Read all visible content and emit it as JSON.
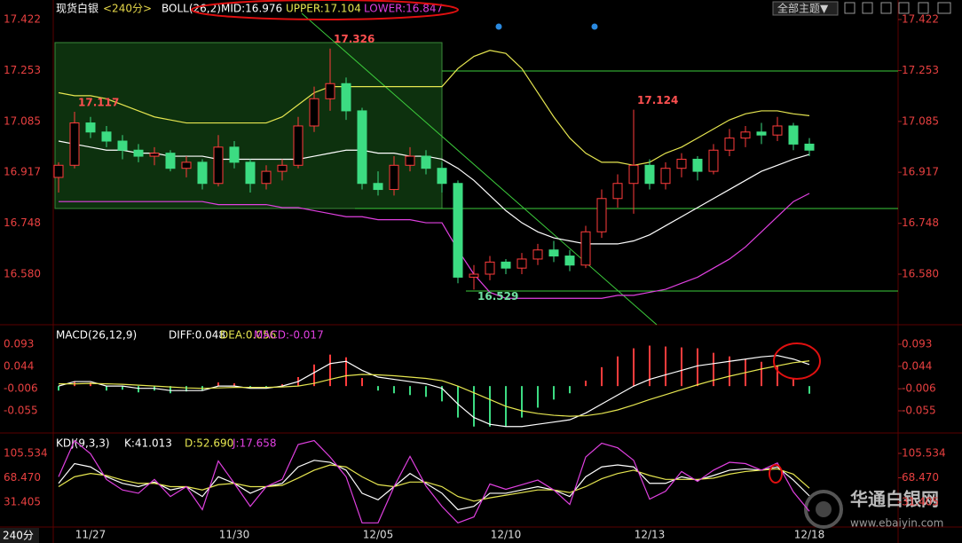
{
  "chart_data": [
    {
      "type": "candlestick",
      "title": "现货白银",
      "subtitle": "<240分>",
      "indicator": "BOLL(26,2)",
      "categories": [
        null,
        null,
        "11/27",
        null,
        null,
        null,
        null,
        null,
        null,
        null,
        null,
        "11/30",
        null,
        null,
        null,
        null,
        null,
        null,
        null,
        null,
        "12/05",
        null,
        null,
        null,
        null,
        null,
        null,
        null,
        "12/10",
        null,
        null,
        null,
        null,
        null,
        null,
        null,
        null,
        "12/13",
        null,
        null,
        null,
        null,
        null,
        null,
        null,
        null,
        null,
        "12/18"
      ],
      "open": [
        16.9,
        16.94,
        17.08,
        17.05,
        17.02,
        16.99,
        16.97,
        16.98,
        16.93,
        16.95,
        16.88,
        17.0,
        16.95,
        16.88,
        16.92,
        16.94,
        17.07,
        17.16,
        17.21,
        17.12,
        16.88,
        16.86,
        16.94,
        16.97,
        16.93,
        16.88,
        16.57,
        16.58,
        16.62,
        16.6,
        16.63,
        16.66,
        16.64,
        16.61,
        16.72,
        16.83,
        16.88,
        16.94,
        16.88,
        16.93,
        16.96,
        16.92,
        16.99,
        17.03,
        17.05,
        17.04,
        17.07,
        17.01
      ],
      "high": [
        16.95,
        17.117,
        17.1,
        17.07,
        17.04,
        17.01,
        17.0,
        16.99,
        16.97,
        16.96,
        17.04,
        17.02,
        16.96,
        16.94,
        16.96,
        17.1,
        17.2,
        17.326,
        17.23,
        17.13,
        16.92,
        16.97,
        17.0,
        16.99,
        16.95,
        16.89,
        16.61,
        16.64,
        16.63,
        16.65,
        16.68,
        16.69,
        16.66,
        16.74,
        16.86,
        16.91,
        17.124,
        16.96,
        16.95,
        16.98,
        16.97,
        17.01,
        17.06,
        17.07,
        17.08,
        17.1,
        17.08,
        17.03
      ],
      "low": [
        16.85,
        16.93,
        17.03,
        17.0,
        16.96,
        16.95,
        16.94,
        16.92,
        16.9,
        16.86,
        16.87,
        16.93,
        16.85,
        16.86,
        16.89,
        16.93,
        17.05,
        17.12,
        17.09,
        16.86,
        16.84,
        16.84,
        16.92,
        16.91,
        16.85,
        16.55,
        16.529,
        16.56,
        16.58,
        16.58,
        16.61,
        16.62,
        16.59,
        16.6,
        16.7,
        16.8,
        16.78,
        16.86,
        16.86,
        16.9,
        16.89,
        16.91,
        16.97,
        17.0,
        17.01,
        17.02,
        16.99,
        16.97
      ],
      "close": [
        16.94,
        17.08,
        17.05,
        17.02,
        16.99,
        16.97,
        16.98,
        16.93,
        16.95,
        16.88,
        17.0,
        16.95,
        16.88,
        16.92,
        16.94,
        17.07,
        17.16,
        17.21,
        17.12,
        16.88,
        16.86,
        16.94,
        16.97,
        16.93,
        16.88,
        16.57,
        16.58,
        16.62,
        16.6,
        16.63,
        16.66,
        16.64,
        16.61,
        16.72,
        16.83,
        16.88,
        16.94,
        16.88,
        16.93,
        16.96,
        16.92,
        16.99,
        17.03,
        17.05,
        17.04,
        17.07,
        17.01,
        16.99
      ],
      "up_color": "#ff3c3c",
      "down_color": "#3cdc82",
      "series": [
        {
          "name": "MID:16.976",
          "color": "#ffffff",
          "values": [
            17.02,
            17.01,
            17.0,
            16.99,
            16.99,
            16.98,
            16.98,
            16.97,
            16.97,
            16.97,
            16.96,
            16.96,
            16.96,
            16.96,
            16.96,
            16.96,
            16.97,
            16.98,
            16.99,
            16.99,
            16.98,
            16.98,
            16.97,
            16.97,
            16.96,
            16.93,
            16.89,
            16.84,
            16.79,
            16.75,
            16.72,
            16.7,
            16.69,
            16.68,
            16.68,
            16.68,
            16.69,
            16.71,
            16.74,
            16.77,
            16.8,
            16.83,
            16.86,
            16.89,
            16.92,
            16.94,
            16.96,
            16.976
          ]
        },
        {
          "name": "UPPER:17.104",
          "color": "#e6e650",
          "values": [
            17.18,
            17.17,
            17.17,
            17.16,
            17.14,
            17.12,
            17.1,
            17.09,
            17.08,
            17.08,
            17.08,
            17.08,
            17.08,
            17.08,
            17.1,
            17.14,
            17.18,
            17.2,
            17.2,
            17.2,
            17.2,
            17.2,
            17.2,
            17.2,
            17.2,
            17.26,
            17.3,
            17.32,
            17.31,
            17.26,
            17.18,
            17.1,
            17.03,
            16.98,
            16.95,
            16.95,
            16.94,
            16.95,
            16.98,
            17.0,
            17.03,
            17.06,
            17.09,
            17.11,
            17.12,
            17.12,
            17.11,
            17.104
          ]
        },
        {
          "name": "LOWER:16.847",
          "color": "#e040e0",
          "values": [
            16.82,
            16.82,
            16.82,
            16.82,
            16.82,
            16.82,
            16.82,
            16.82,
            16.82,
            16.82,
            16.81,
            16.81,
            16.81,
            16.81,
            16.8,
            16.8,
            16.79,
            16.78,
            16.77,
            16.77,
            16.76,
            16.76,
            16.76,
            16.75,
            16.75,
            16.66,
            16.58,
            16.52,
            16.5,
            16.5,
            16.5,
            16.5,
            16.5,
            16.5,
            16.5,
            16.51,
            16.51,
            16.52,
            16.53,
            16.55,
            16.57,
            16.6,
            16.63,
            16.67,
            16.72,
            16.77,
            16.82,
            16.847
          ]
        }
      ],
      "annotations": [
        {
          "value": 17.117,
          "label": "17.117",
          "color": "#ff5050"
        },
        {
          "value": 17.326,
          "label": "17.326",
          "color": "#ff5050"
        },
        {
          "value": 16.529,
          "label": "16.529",
          "color": "#6fe0a0"
        },
        {
          "value": 17.124,
          "label": "17.124",
          "color": "#ff5050"
        }
      ],
      "ylim": [
        16.4157,
        17.4865
      ],
      "yticks": [
        17.422,
        17.253,
        17.085,
        16.917,
        16.748,
        {
          "value": 16.58,
          "label": "16.580"
        }
      ]
    },
    {
      "type": "macd",
      "title": "MACD(26,12,9)",
      "series": [
        {
          "name": "DIFF:0.048",
          "color": "#ffffff",
          "values": [
            0.0,
            0.01,
            0.01,
            0.0,
            0.0,
            -0.005,
            -0.005,
            -0.01,
            -0.01,
            -0.01,
            0.0,
            0.0,
            -0.005,
            -0.005,
            0.0,
            0.01,
            0.03,
            0.05,
            0.055,
            0.035,
            0.02,
            0.015,
            0.01,
            0.005,
            -0.005,
            -0.04,
            -0.07,
            -0.085,
            -0.09,
            -0.09,
            -0.085,
            -0.08,
            -0.075,
            -0.06,
            -0.04,
            -0.02,
            0.0,
            0.015,
            0.025,
            0.035,
            0.045,
            0.05,
            0.055,
            0.06,
            0.065,
            0.068,
            0.06,
            0.048
          ]
        },
        {
          "name": "DEA:0.056",
          "color": "#e6e650",
          "values": [
            0.005,
            0.005,
            0.006,
            0.005,
            0.004,
            0.002,
            0.0,
            -0.002,
            -0.004,
            -0.005,
            -0.004,
            -0.003,
            -0.003,
            -0.003,
            -0.002,
            0.0,
            0.006,
            0.015,
            0.023,
            0.026,
            0.025,
            0.023,
            0.02,
            0.017,
            0.012,
            0.0,
            -0.015,
            -0.03,
            -0.045,
            -0.055,
            -0.061,
            -0.065,
            -0.067,
            -0.066,
            -0.061,
            -0.053,
            -0.042,
            -0.03,
            -0.019,
            -0.008,
            0.003,
            0.013,
            0.022,
            0.03,
            0.038,
            0.045,
            0.052,
            0.056
          ]
        },
        {
          "name": "MACD:-0.017",
          "color": "#e040e0",
          "values": [
            -0.01,
            0.01,
            0.008,
            -0.01,
            -0.008,
            -0.014,
            -0.01,
            -0.016,
            -0.012,
            -0.01,
            0.008,
            0.006,
            -0.004,
            -0.004,
            0.004,
            0.02,
            0.048,
            0.07,
            0.064,
            0.018,
            -0.01,
            -0.016,
            -0.02,
            -0.024,
            -0.034,
            -0.07,
            -0.09,
            -0.09,
            -0.09,
            -0.07,
            -0.048,
            -0.03,
            -0.016,
            0.012,
            0.042,
            0.066,
            0.084,
            0.09,
            0.088,
            0.086,
            0.084,
            0.074,
            0.066,
            0.06,
            0.054,
            0.046,
            0.016,
            -0.017
          ]
        }
      ],
      "up_color": "#ff3c3c",
      "down_color": "#3cdc82",
      "ylim": [
        -0.0984,
        0.1325
      ],
      "yticks": [
        0.093,
        0.044,
        -0.006,
        -0.055
      ]
    },
    {
      "type": "kdj",
      "title": "KDJ(9,3,3)",
      "series": [
        {
          "name": "K:41.013",
          "color": "#ffffff",
          "values": [
            60,
            90,
            85,
            70,
            60,
            55,
            62,
            50,
            55,
            40,
            70,
            60,
            45,
            55,
            60,
            85,
            95,
            92,
            80,
            45,
            35,
            55,
            75,
            60,
            45,
            20,
            25,
            45,
            45,
            50,
            55,
            50,
            40,
            70,
            85,
            88,
            85,
            60,
            60,
            70,
            65,
            72,
            80,
            82,
            80,
            85,
            65,
            41.013
          ]
        },
        {
          "name": "D:52.690",
          "color": "#e6e650",
          "values": [
            55,
            70,
            75,
            72,
            65,
            60,
            60,
            55,
            55,
            50,
            58,
            60,
            55,
            55,
            57,
            68,
            80,
            88,
            85,
            70,
            58,
            55,
            62,
            62,
            55,
            40,
            33,
            38,
            42,
            46,
            50,
            50,
            46,
            55,
            67,
            75,
            80,
            72,
            66,
            66,
            66,
            68,
            74,
            78,
            80,
            82,
            74,
            52.69
          ]
        },
        {
          "name": "J:17.658",
          "color": "#e040e0",
          "values": [
            70,
            125,
            105,
            66,
            50,
            45,
            66,
            40,
            55,
            20,
            94,
            60,
            25,
            55,
            66,
            119,
            125,
            100,
            70,
            0,
            0,
            55,
            101,
            56,
            25,
            0,
            9,
            59,
            51,
            58,
            65,
            50,
            28,
            100,
            121,
            114,
            95,
            36,
            48,
            78,
            63,
            80,
            92,
            90,
            80,
            91,
            47,
            17.658
          ]
        }
      ],
      "ylim": [
        -3.64,
        133.84
      ],
      "yticks": [
        105.534,
        {
          "value": 68.47,
          "label": "68.470"
        },
        31.405
      ]
    }
  ],
  "period_label": "240分",
  "toolbar": {
    "theme_button": "全部主题▼"
  },
  "watermark": {
    "name": "华通白银网",
    "url": "www.ebaiyin.com"
  }
}
